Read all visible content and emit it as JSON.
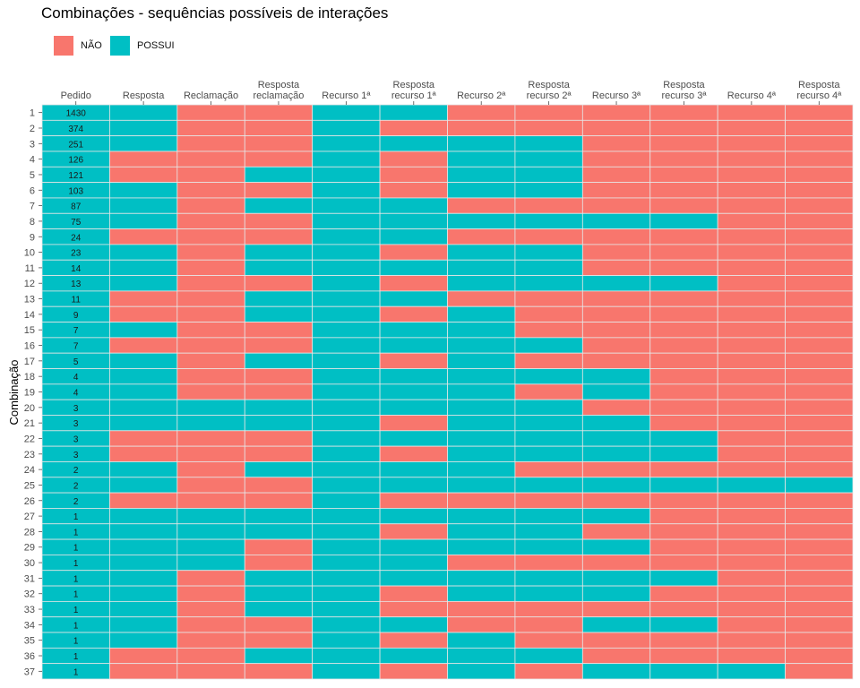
{
  "chart_data": {
    "type": "heatmap",
    "title": "Combinações - sequências possíveis de interações",
    "ylabel": "Combinação",
    "xlabel": "",
    "legend": {
      "position": "top-left",
      "entries": [
        {
          "label": "NÃO",
          "color": "#F8766D"
        },
        {
          "label": "POSSUI",
          "color": "#00BFC4"
        }
      ]
    },
    "grid": true,
    "columns": [
      "Pedido",
      "Resposta",
      "Reclamação",
      "Resposta\nreclamação",
      "Recurso 1ª",
      "Resposta\nrecurso 1ª",
      "Recurso 2ª",
      "Resposta\nrecurso 2ª",
      "Recurso 3ª",
      "Resposta\nrecurso 3ª",
      "Recurso 4ª",
      "Resposta\nrecurso 4ª"
    ],
    "rows": [
      {
        "label": "1",
        "count": "1430",
        "cells": [
          1,
          1,
          0,
          0,
          1,
          1,
          0,
          0,
          0,
          0,
          0,
          0
        ]
      },
      {
        "label": "2",
        "count": "374",
        "cells": [
          1,
          1,
          0,
          0,
          1,
          0,
          0,
          0,
          0,
          0,
          0,
          0
        ]
      },
      {
        "label": "3",
        "count": "251",
        "cells": [
          1,
          1,
          0,
          0,
          1,
          1,
          1,
          1,
          0,
          0,
          0,
          0
        ]
      },
      {
        "label": "4",
        "count": "126",
        "cells": [
          1,
          0,
          0,
          0,
          1,
          0,
          1,
          1,
          0,
          0,
          0,
          0
        ]
      },
      {
        "label": "5",
        "count": "121",
        "cells": [
          1,
          0,
          0,
          1,
          1,
          0,
          1,
          1,
          0,
          0,
          0,
          0
        ]
      },
      {
        "label": "6",
        "count": "103",
        "cells": [
          1,
          1,
          0,
          0,
          1,
          0,
          1,
          1,
          0,
          0,
          0,
          0
        ]
      },
      {
        "label": "7",
        "count": "87",
        "cells": [
          1,
          1,
          0,
          1,
          1,
          1,
          0,
          0,
          0,
          0,
          0,
          0
        ]
      },
      {
        "label": "8",
        "count": "75",
        "cells": [
          1,
          1,
          0,
          0,
          1,
          1,
          1,
          1,
          1,
          1,
          0,
          0
        ]
      },
      {
        "label": "9",
        "count": "24",
        "cells": [
          1,
          0,
          0,
          0,
          1,
          1,
          0,
          0,
          0,
          0,
          0,
          0
        ]
      },
      {
        "label": "10",
        "count": "23",
        "cells": [
          1,
          1,
          0,
          1,
          1,
          0,
          1,
          1,
          0,
          0,
          0,
          0
        ]
      },
      {
        "label": "11",
        "count": "14",
        "cells": [
          1,
          1,
          0,
          1,
          1,
          1,
          1,
          1,
          0,
          0,
          0,
          0
        ]
      },
      {
        "label": "12",
        "count": "13",
        "cells": [
          1,
          1,
          0,
          0,
          1,
          0,
          1,
          1,
          1,
          1,
          0,
          0
        ]
      },
      {
        "label": "13",
        "count": "11",
        "cells": [
          1,
          0,
          0,
          1,
          1,
          1,
          0,
          0,
          0,
          0,
          0,
          0
        ]
      },
      {
        "label": "14",
        "count": "9",
        "cells": [
          1,
          0,
          0,
          1,
          1,
          0,
          1,
          0,
          0,
          0,
          0,
          0
        ]
      },
      {
        "label": "15",
        "count": "7",
        "cells": [
          1,
          1,
          0,
          0,
          1,
          1,
          1,
          0,
          0,
          0,
          0,
          0
        ]
      },
      {
        "label": "16",
        "count": "7",
        "cells": [
          1,
          0,
          0,
          0,
          1,
          1,
          1,
          1,
          0,
          0,
          0,
          0
        ]
      },
      {
        "label": "17",
        "count": "5",
        "cells": [
          1,
          1,
          0,
          1,
          1,
          0,
          1,
          0,
          0,
          0,
          0,
          0
        ]
      },
      {
        "label": "18",
        "count": "4",
        "cells": [
          1,
          1,
          0,
          0,
          1,
          1,
          1,
          1,
          1,
          0,
          0,
          0
        ]
      },
      {
        "label": "19",
        "count": "4",
        "cells": [
          1,
          1,
          0,
          0,
          1,
          1,
          1,
          0,
          1,
          0,
          0,
          0
        ]
      },
      {
        "label": "20",
        "count": "3",
        "cells": [
          1,
          1,
          1,
          1,
          1,
          1,
          1,
          1,
          0,
          0,
          0,
          0
        ]
      },
      {
        "label": "21",
        "count": "3",
        "cells": [
          1,
          1,
          1,
          1,
          1,
          0,
          1,
          1,
          1,
          0,
          0,
          0
        ]
      },
      {
        "label": "22",
        "count": "3",
        "cells": [
          1,
          0,
          0,
          0,
          1,
          1,
          1,
          1,
          1,
          1,
          0,
          0
        ]
      },
      {
        "label": "23",
        "count": "3",
        "cells": [
          1,
          0,
          0,
          0,
          1,
          0,
          1,
          1,
          1,
          1,
          0,
          0
        ]
      },
      {
        "label": "24",
        "count": "2",
        "cells": [
          1,
          1,
          0,
          1,
          1,
          1,
          1,
          0,
          0,
          0,
          0,
          0
        ]
      },
      {
        "label": "25",
        "count": "2",
        "cells": [
          1,
          1,
          0,
          0,
          1,
          1,
          1,
          1,
          1,
          1,
          1,
          1
        ]
      },
      {
        "label": "26",
        "count": "2",
        "cells": [
          1,
          0,
          0,
          0,
          1,
          0,
          0,
          0,
          0,
          0,
          0,
          0
        ]
      },
      {
        "label": "27",
        "count": "1",
        "cells": [
          1,
          1,
          1,
          1,
          1,
          1,
          1,
          1,
          1,
          0,
          0,
          0
        ]
      },
      {
        "label": "28",
        "count": "1",
        "cells": [
          1,
          1,
          1,
          1,
          1,
          0,
          1,
          1,
          0,
          0,
          0,
          0
        ]
      },
      {
        "label": "29",
        "count": "1",
        "cells": [
          1,
          1,
          1,
          0,
          1,
          1,
          1,
          1,
          1,
          0,
          0,
          0
        ]
      },
      {
        "label": "30",
        "count": "1",
        "cells": [
          1,
          1,
          1,
          0,
          1,
          1,
          0,
          0,
          0,
          0,
          0,
          0
        ]
      },
      {
        "label": "31",
        "count": "1",
        "cells": [
          1,
          1,
          0,
          1,
          1,
          1,
          1,
          1,
          1,
          1,
          0,
          0
        ]
      },
      {
        "label": "32",
        "count": "1",
        "cells": [
          1,
          1,
          0,
          1,
          1,
          0,
          1,
          1,
          1,
          0,
          0,
          0
        ]
      },
      {
        "label": "33",
        "count": "1",
        "cells": [
          1,
          1,
          0,
          1,
          1,
          0,
          0,
          0,
          0,
          0,
          0,
          0
        ]
      },
      {
        "label": "34",
        "count": "1",
        "cells": [
          1,
          1,
          0,
          0,
          1,
          1,
          0,
          0,
          1,
          1,
          0,
          0
        ]
      },
      {
        "label": "35",
        "count": "1",
        "cells": [
          1,
          1,
          0,
          0,
          1,
          0,
          1,
          0,
          0,
          0,
          0,
          0
        ]
      },
      {
        "label": "36",
        "count": "1",
        "cells": [
          1,
          0,
          0,
          1,
          1,
          1,
          1,
          1,
          0,
          0,
          0,
          0
        ]
      },
      {
        "label": "37",
        "count": "1",
        "cells": [
          1,
          0,
          0,
          0,
          1,
          0,
          1,
          0,
          1,
          1,
          1,
          0
        ]
      }
    ]
  }
}
